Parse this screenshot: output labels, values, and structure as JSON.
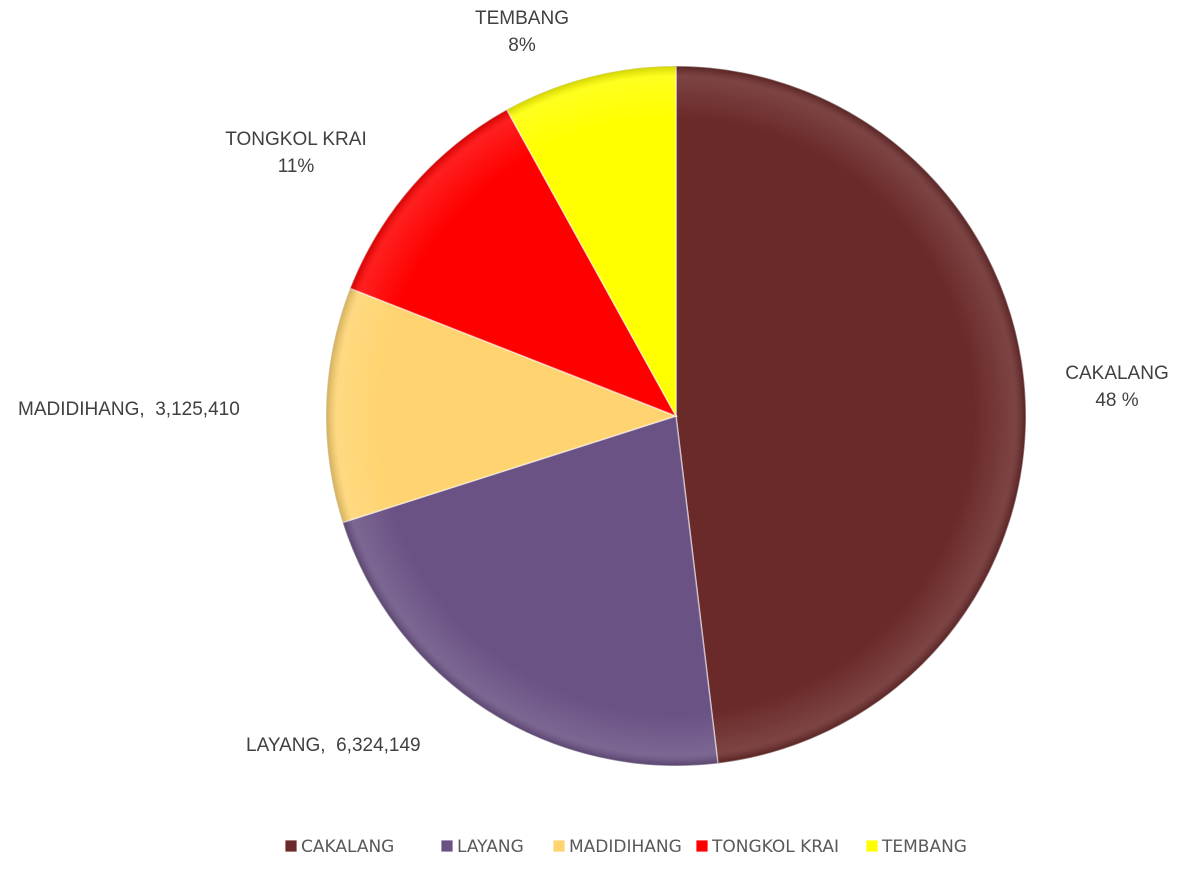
{
  "chart_data": {
    "type": "pie",
    "categories": [
      "CAKALANG",
      "LAYANG",
      "MADIDIHANG",
      "TONGKOL KRAI",
      "TEMBANG"
    ],
    "values": [
      13830000,
      6324149,
      3125410,
      3170000,
      2310000
    ],
    "value_labels": [
      "48 %",
      ",  6,324,149",
      ",  3,125,410",
      "11%",
      "8%"
    ],
    "colors": [
      "#6b2a2a",
      "#6a5284",
      "#ffd470",
      "#ff0000",
      "#ffff00"
    ],
    "legend": "bottom"
  }
}
